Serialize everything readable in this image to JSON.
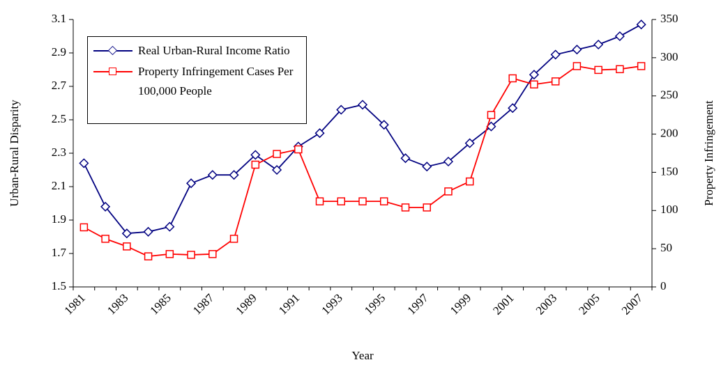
{
  "chart_data": {
    "type": "line",
    "x_label": "Year",
    "y_label": "Urban-Rural Disparity",
    "y2_label": "Property Infringement",
    "categories": [
      "1981",
      null,
      "1983",
      null,
      "1985",
      null,
      "1987",
      null,
      "1989",
      null,
      "1991",
      null,
      "1993",
      null,
      "1995",
      null,
      "1997",
      null,
      "1999",
      null,
      "2001",
      null,
      "2003",
      null,
      "2005",
      null,
      "2007"
    ],
    "series": [
      {
        "name": "Real Urban-Rural Income Ratio",
        "color": "#000080",
        "marker": "diamond",
        "values": [
          2.24,
          1.98,
          1.82,
          1.83,
          1.86,
          2.12,
          2.17,
          2.17,
          2.29,
          2.2,
          2.34,
          2.42,
          2.56,
          2.59,
          2.47,
          2.27,
          2.22,
          2.25,
          2.36,
          2.46,
          2.57,
          2.77,
          2.89,
          2.92,
          2.95,
          3.0,
          3.07
        ]
      },
      {
        "name": "Property Infringement Cases Per 100,000 People",
        "color": "#ff0000",
        "marker": "square",
        "axis": "y2",
        "values": [
          78,
          63,
          53,
          40,
          43,
          42,
          43,
          63,
          160,
          174,
          180,
          112,
          112,
          112,
          112,
          104,
          104,
          125,
          138,
          225,
          273,
          265,
          269,
          289,
          284,
          285,
          289
        ]
      }
    ],
    "ylim": [
      1.5,
      3.1
    ],
    "yticks": [
      1.5,
      1.7,
      1.9,
      2.1,
      2.3,
      2.5,
      2.7,
      2.9,
      3.1
    ],
    "y2lim": [
      0,
      350
    ],
    "y2ticks": [
      0,
      50,
      100,
      150,
      200,
      250,
      300,
      350
    ],
    "legend": "upper-left",
    "grid": false
  }
}
